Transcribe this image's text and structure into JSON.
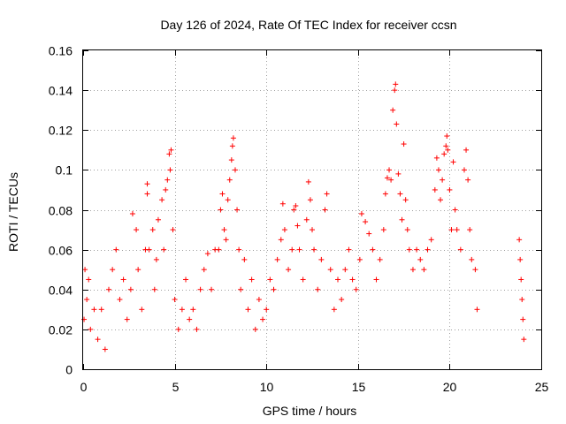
{
  "chart_data": {
    "type": "scatter",
    "title": "Day 126 of 2024, Rate Of TEC Index for receiver ccsn",
    "xlabel": "GPS time / hours",
    "ylabel": "ROTI / TECUs",
    "xlim": [
      0,
      25
    ],
    "ylim": [
      0,
      0.16
    ],
    "xticks": [
      "0",
      "5",
      "10",
      "15",
      "20",
      "25"
    ],
    "yticks": [
      "0",
      "0.02",
      "0.04",
      "0.06",
      "0.08",
      "0.1",
      "0.12",
      "0.14",
      "0.16"
    ],
    "xtick_values": [
      0,
      5,
      10,
      15,
      20,
      25
    ],
    "ytick_values": [
      0,
      0.02,
      0.04,
      0.06,
      0.08,
      0.1,
      0.12,
      0.14,
      0.16
    ],
    "grid": true,
    "marker": "plus",
    "series": [
      {
        "color": "#ff0000",
        "points": [
          [
            0.05,
            0.025
          ],
          [
            0.1,
            0.05
          ],
          [
            0.2,
            0.035
          ],
          [
            0.3,
            0.045
          ],
          [
            0.4,
            0.02
          ],
          [
            0.6,
            0.03
          ],
          [
            0.8,
            0.015
          ],
          [
            1.0,
            0.03
          ],
          [
            1.2,
            0.01
          ],
          [
            1.4,
            0.04
          ],
          [
            1.6,
            0.05
          ],
          [
            1.8,
            0.06
          ],
          [
            2.0,
            0.035
          ],
          [
            2.2,
            0.045
          ],
          [
            2.4,
            0.025
          ],
          [
            2.6,
            0.04
          ],
          [
            2.7,
            0.078
          ],
          [
            2.9,
            0.07
          ],
          [
            3.0,
            0.05
          ],
          [
            3.2,
            0.03
          ],
          [
            3.4,
            0.06
          ],
          [
            3.5,
            0.093
          ],
          [
            3.5,
            0.088
          ],
          [
            3.6,
            0.06
          ],
          [
            3.8,
            0.07
          ],
          [
            3.9,
            0.04
          ],
          [
            4.0,
            0.055
          ],
          [
            4.1,
            0.075
          ],
          [
            4.3,
            0.085
          ],
          [
            4.4,
            0.06
          ],
          [
            4.5,
            0.09
          ],
          [
            4.6,
            0.095
          ],
          [
            4.7,
            0.108
          ],
          [
            4.75,
            0.1
          ],
          [
            4.8,
            0.11
          ],
          [
            4.9,
            0.07
          ],
          [
            5.0,
            0.035
          ],
          [
            5.2,
            0.02
          ],
          [
            5.4,
            0.03
          ],
          [
            5.6,
            0.045
          ],
          [
            5.8,
            0.025
          ],
          [
            6.0,
            0.03
          ],
          [
            6.2,
            0.02
          ],
          [
            6.4,
            0.04
          ],
          [
            6.6,
            0.05
          ],
          [
            6.8,
            0.058
          ],
          [
            7.0,
            0.04
          ],
          [
            7.2,
            0.06
          ],
          [
            7.4,
            0.06
          ],
          [
            7.5,
            0.08
          ],
          [
            7.6,
            0.088
          ],
          [
            7.7,
            0.07
          ],
          [
            7.8,
            0.065
          ],
          [
            7.9,
            0.085
          ],
          [
            8.0,
            0.095
          ],
          [
            8.1,
            0.105
          ],
          [
            8.15,
            0.112
          ],
          [
            8.2,
            0.116
          ],
          [
            8.3,
            0.1
          ],
          [
            8.4,
            0.08
          ],
          [
            8.5,
            0.06
          ],
          [
            8.6,
            0.04
          ],
          [
            8.8,
            0.055
          ],
          [
            9.0,
            0.03
          ],
          [
            9.2,
            0.045
          ],
          [
            9.4,
            0.02
          ],
          [
            9.6,
            0.035
          ],
          [
            9.8,
            0.025
          ],
          [
            10.0,
            0.03
          ],
          [
            10.2,
            0.045
          ],
          [
            10.4,
            0.04
          ],
          [
            10.6,
            0.055
          ],
          [
            10.8,
            0.065
          ],
          [
            10.9,
            0.083
          ],
          [
            11.0,
            0.07
          ],
          [
            11.2,
            0.05
          ],
          [
            11.4,
            0.06
          ],
          [
            11.5,
            0.08
          ],
          [
            11.6,
            0.082
          ],
          [
            11.7,
            0.072
          ],
          [
            11.8,
            0.06
          ],
          [
            12.0,
            0.045
          ],
          [
            12.2,
            0.075
          ],
          [
            12.3,
            0.094
          ],
          [
            12.4,
            0.085
          ],
          [
            12.5,
            0.07
          ],
          [
            12.6,
            0.06
          ],
          [
            12.8,
            0.04
          ],
          [
            13.0,
            0.055
          ],
          [
            13.2,
            0.08
          ],
          [
            13.3,
            0.088
          ],
          [
            13.5,
            0.05
          ],
          [
            13.7,
            0.03
          ],
          [
            13.9,
            0.045
          ],
          [
            14.1,
            0.035
          ],
          [
            14.3,
            0.05
          ],
          [
            14.5,
            0.06
          ],
          [
            14.7,
            0.045
          ],
          [
            14.9,
            0.04
          ],
          [
            15.1,
            0.055
          ],
          [
            15.2,
            0.078
          ],
          [
            15.4,
            0.074
          ],
          [
            15.6,
            0.068
          ],
          [
            15.8,
            0.06
          ],
          [
            16.0,
            0.045
          ],
          [
            16.2,
            0.055
          ],
          [
            16.4,
            0.07
          ],
          [
            16.5,
            0.088
          ],
          [
            16.6,
            0.096
          ],
          [
            16.7,
            0.1
          ],
          [
            16.8,
            0.095
          ],
          [
            16.9,
            0.13
          ],
          [
            17.0,
            0.14
          ],
          [
            17.05,
            0.143
          ],
          [
            17.1,
            0.123
          ],
          [
            17.2,
            0.098
          ],
          [
            17.3,
            0.088
          ],
          [
            17.4,
            0.075
          ],
          [
            17.5,
            0.113
          ],
          [
            17.6,
            0.085
          ],
          [
            17.7,
            0.07
          ],
          [
            17.8,
            0.06
          ],
          [
            18.0,
            0.05
          ],
          [
            18.2,
            0.06
          ],
          [
            18.4,
            0.055
          ],
          [
            18.6,
            0.05
          ],
          [
            18.8,
            0.06
          ],
          [
            19.0,
            0.065
          ],
          [
            19.2,
            0.09
          ],
          [
            19.3,
            0.106
          ],
          [
            19.4,
            0.1
          ],
          [
            19.5,
            0.085
          ],
          [
            19.6,
            0.095
          ],
          [
            19.7,
            0.108
          ],
          [
            19.8,
            0.112
          ],
          [
            19.85,
            0.117
          ],
          [
            19.9,
            0.11
          ],
          [
            20.0,
            0.09
          ],
          [
            20.1,
            0.07
          ],
          [
            20.2,
            0.104
          ],
          [
            20.3,
            0.08
          ],
          [
            20.4,
            0.07
          ],
          [
            20.6,
            0.06
          ],
          [
            20.8,
            0.1
          ],
          [
            20.9,
            0.11
          ],
          [
            21.0,
            0.095
          ],
          [
            21.1,
            0.07
          ],
          [
            21.2,
            0.055
          ],
          [
            21.4,
            0.05
          ],
          [
            21.5,
            0.03
          ],
          [
            23.8,
            0.065
          ],
          [
            23.85,
            0.055
          ],
          [
            23.9,
            0.045
          ],
          [
            23.95,
            0.035
          ],
          [
            24.0,
            0.025
          ],
          [
            24.05,
            0.015
          ]
        ]
      }
    ]
  }
}
